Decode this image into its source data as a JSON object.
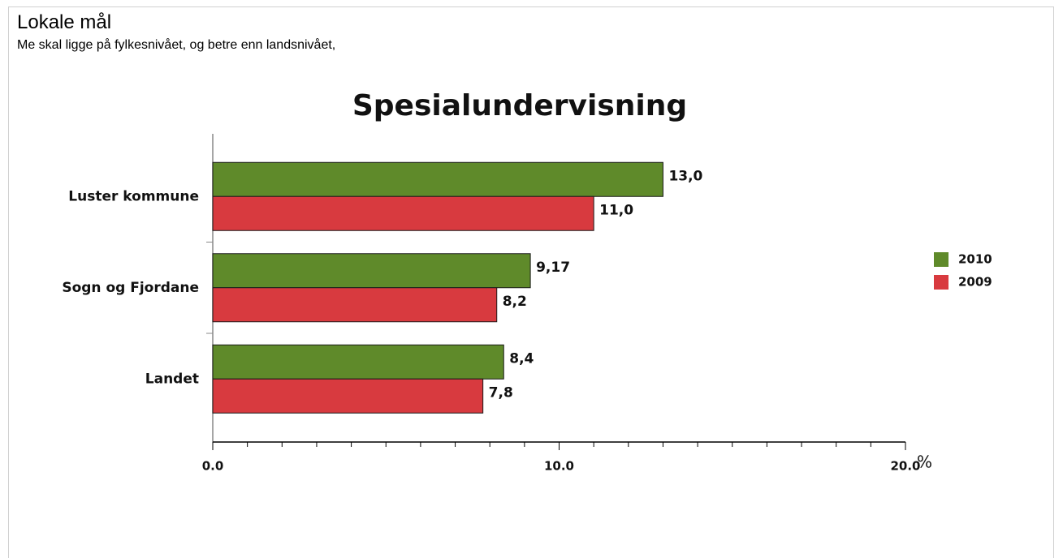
{
  "header": {
    "title": "Lokale mål",
    "subtitle": "Me skal ligge på fylkesnivået, og betre enn landsnivået,"
  },
  "chart_data": {
    "type": "hbar",
    "title": "Spesialundervisning",
    "categories": [
      "Luster kommune",
      "Sogn og Fjordane",
      "Landet"
    ],
    "series": [
      {
        "name": "2010",
        "color": "#5f8a2a",
        "values": [
          13.0,
          9.17,
          8.4
        ],
        "value_labels": [
          "13,0",
          "9,17",
          "8,4"
        ]
      },
      {
        "name": "2009",
        "color": "#d83a3f",
        "values": [
          11.0,
          8.2,
          7.8
        ],
        "value_labels": [
          "11,0",
          "8,2",
          "7,8"
        ]
      }
    ],
    "xlabel": "%",
    "xlim": [
      0,
      20
    ],
    "xticks": [
      {
        "value": 0,
        "label": "0.0"
      },
      {
        "value": 10,
        "label": "10.0"
      },
      {
        "value": 20,
        "label": "20.0"
      }
    ],
    "xminorticks": [
      1,
      2,
      3,
      4,
      5,
      6,
      7,
      8,
      9,
      11,
      12,
      13,
      14,
      15,
      16,
      17,
      18,
      19
    ],
    "legend": "right"
  }
}
